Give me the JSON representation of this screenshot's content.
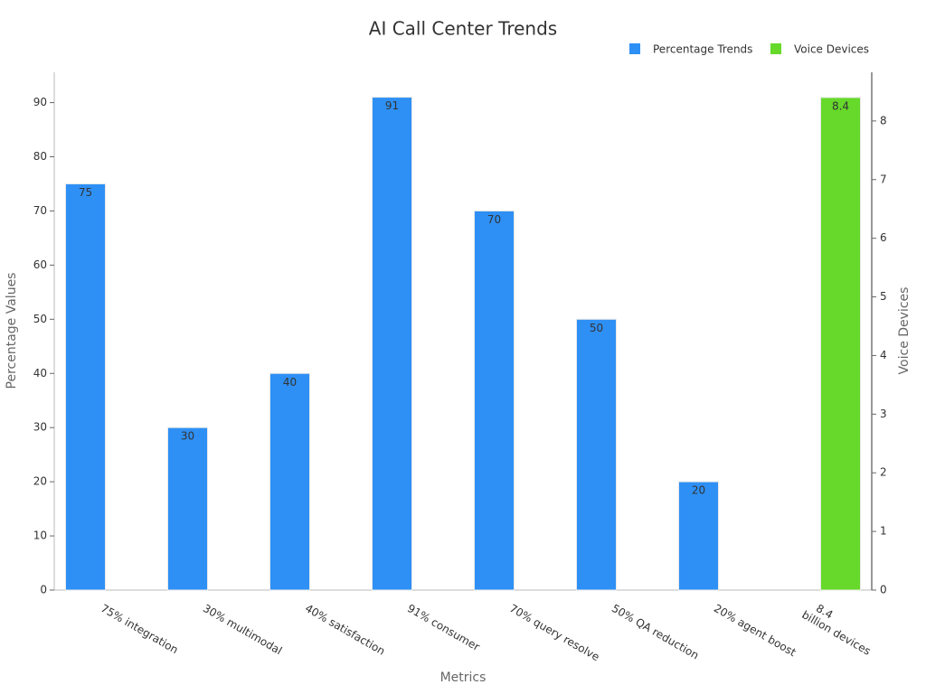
{
  "chart_data": {
    "type": "bar",
    "title": "AI Call Center Trends",
    "x_label": "Metrics",
    "y_label": "Percentage Values",
    "y2_label": "Voice Devices",
    "categories": [
      "75% integration",
      "30% multimodal",
      "40% satisfaction",
      "91% consumer",
      "70% query resolve",
      "50% QA reduction",
      "20% agent boost",
      "8.4\nbillion devices"
    ],
    "series": [
      {
        "name": "Percentage Trends",
        "color": "#2e90f5",
        "values": [
          75,
          30,
          40,
          91,
          70,
          50,
          20,
          null
        ]
      },
      {
        "name": "Voice Devices",
        "color": "#66d92a",
        "axis": "y2",
        "values": [
          null,
          null,
          null,
          null,
          null,
          null,
          null,
          8.4
        ]
      }
    ],
    "ylim": [
      0,
      95.6
    ],
    "yticks": [
      0,
      10,
      20,
      30,
      40,
      50,
      60,
      70,
      80,
      90
    ],
    "y2lim": [
      0,
      8.83
    ],
    "y2ticks": [
      0,
      1,
      2,
      3,
      4,
      5,
      6,
      7,
      8
    ],
    "grid": false,
    "legend": "top-right"
  }
}
